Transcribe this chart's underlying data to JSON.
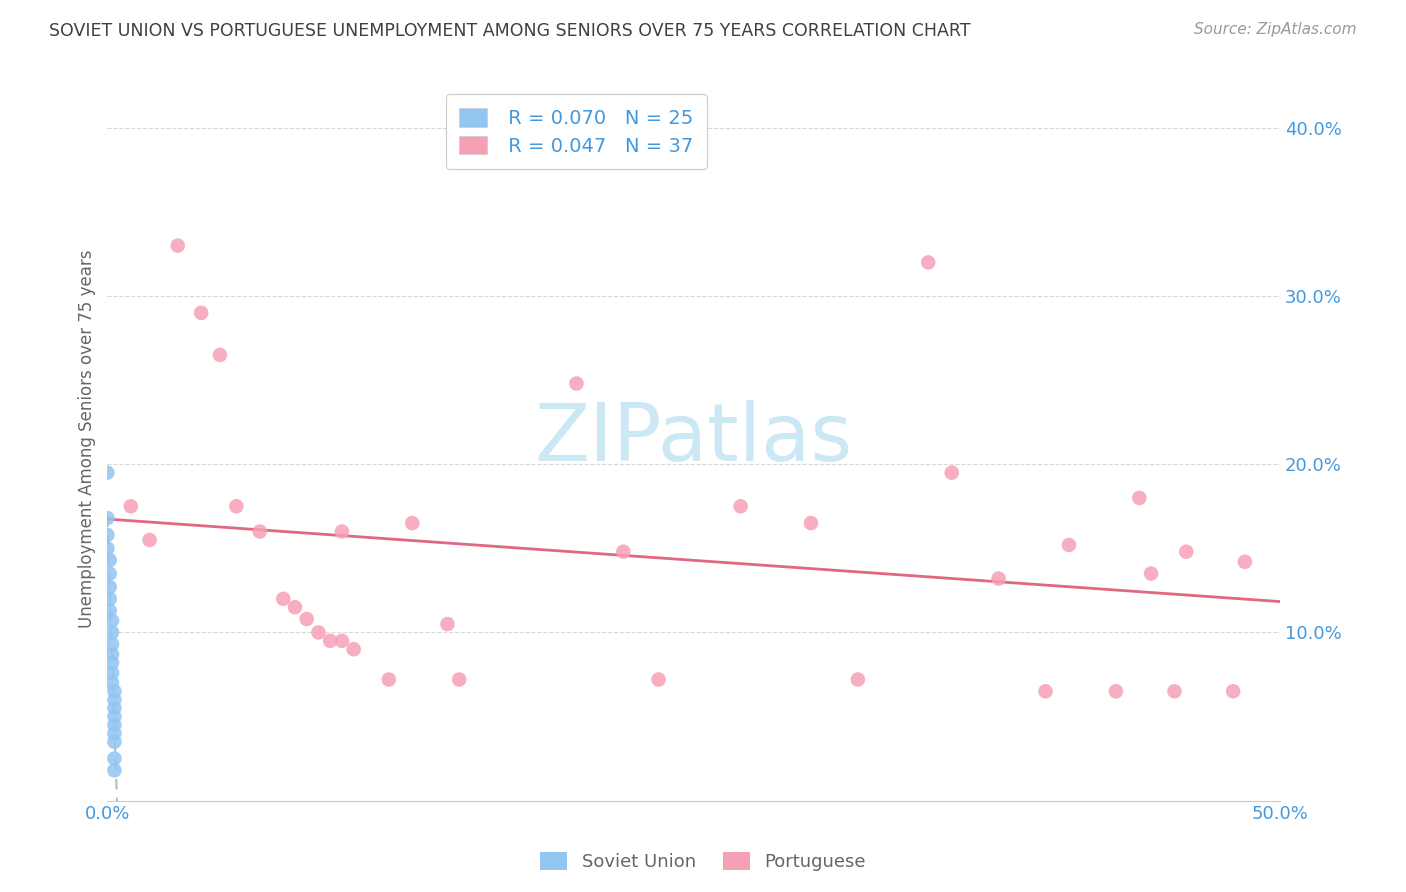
{
  "title": "SOVIET UNION VS PORTUGUESE UNEMPLOYMENT AMONG SENIORS OVER 75 YEARS CORRELATION CHART",
  "source": "Source: ZipAtlas.com",
  "ylabel": "Unemployment Among Seniors over 75 years",
  "ytick_values": [
    0.1,
    0.2,
    0.3,
    0.4
  ],
  "xlim": [
    0.0,
    0.5
  ],
  "ylim": [
    0.0,
    0.43
  ],
  "soviet_R": "R = 0.070",
  "soviet_N": "N = 25",
  "portuguese_R": "R = 0.047",
  "portuguese_N": "N = 37",
  "soviet_color": "#92C5F0",
  "soviet_line_color": "#9ab8d0",
  "portuguese_color": "#F5A0B5",
  "portuguese_line_color": "#E06880",
  "background_color": "#ffffff",
  "grid_color": "#d8d8d8",
  "title_color": "#404040",
  "axis_label_color": "#4499dd",
  "watermark_color": "#cde8f5",
  "soviet_points": [
    [
      0.0,
      0.195
    ],
    [
      0.0,
      0.168
    ],
    [
      0.0,
      0.158
    ],
    [
      0.0,
      0.15
    ],
    [
      0.001,
      0.143
    ],
    [
      0.001,
      0.135
    ],
    [
      0.001,
      0.127
    ],
    [
      0.001,
      0.12
    ],
    [
      0.001,
      0.113
    ],
    [
      0.002,
      0.107
    ],
    [
      0.002,
      0.1
    ],
    [
      0.002,
      0.093
    ],
    [
      0.002,
      0.087
    ],
    [
      0.002,
      0.082
    ],
    [
      0.002,
      0.076
    ],
    [
      0.002,
      0.07
    ],
    [
      0.003,
      0.065
    ],
    [
      0.003,
      0.06
    ],
    [
      0.003,
      0.055
    ],
    [
      0.003,
      0.05
    ],
    [
      0.003,
      0.045
    ],
    [
      0.003,
      0.04
    ],
    [
      0.003,
      0.035
    ],
    [
      0.003,
      0.025
    ],
    [
      0.003,
      0.018
    ]
  ],
  "portuguese_points": [
    [
      0.01,
      0.175
    ],
    [
      0.018,
      0.155
    ],
    [
      0.03,
      0.33
    ],
    [
      0.04,
      0.29
    ],
    [
      0.048,
      0.265
    ],
    [
      0.055,
      0.175
    ],
    [
      0.065,
      0.16
    ],
    [
      0.075,
      0.12
    ],
    [
      0.08,
      0.115
    ],
    [
      0.085,
      0.108
    ],
    [
      0.09,
      0.1
    ],
    [
      0.095,
      0.095
    ],
    [
      0.1,
      0.16
    ],
    [
      0.1,
      0.095
    ],
    [
      0.105,
      0.09
    ],
    [
      0.12,
      0.072
    ],
    [
      0.13,
      0.165
    ],
    [
      0.145,
      0.105
    ],
    [
      0.15,
      0.072
    ],
    [
      0.2,
      0.248
    ],
    [
      0.22,
      0.148
    ],
    [
      0.235,
      0.072
    ],
    [
      0.27,
      0.175
    ],
    [
      0.3,
      0.165
    ],
    [
      0.32,
      0.072
    ],
    [
      0.35,
      0.32
    ],
    [
      0.36,
      0.195
    ],
    [
      0.38,
      0.132
    ],
    [
      0.4,
      0.065
    ],
    [
      0.41,
      0.152
    ],
    [
      0.43,
      0.065
    ],
    [
      0.44,
      0.18
    ],
    [
      0.445,
      0.135
    ],
    [
      0.455,
      0.065
    ],
    [
      0.46,
      0.148
    ],
    [
      0.48,
      0.065
    ],
    [
      0.485,
      0.142
    ]
  ]
}
